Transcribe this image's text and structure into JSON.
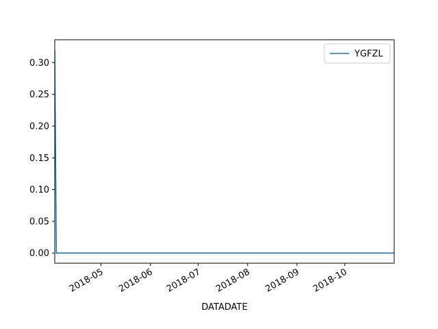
{
  "chart_data": {
    "type": "line",
    "title": "",
    "xlabel": "DATADATE",
    "ylabel": "",
    "x_type": "date",
    "xlim": [
      "2018-04-02",
      "2018-11-01"
    ],
    "ylim": [
      -0.016,
      0.336
    ],
    "x_ticks": [
      {
        "date": "2018-05-01",
        "label": "2018-05"
      },
      {
        "date": "2018-06-01",
        "label": "2018-06"
      },
      {
        "date": "2018-07-01",
        "label": "2018-07"
      },
      {
        "date": "2018-08-01",
        "label": "2018-08"
      },
      {
        "date": "2018-09-01",
        "label": "2018-09"
      },
      {
        "date": "2018-10-01",
        "label": "2018-10"
      }
    ],
    "y_ticks": [
      {
        "value": 0.0,
        "label": "0.00"
      },
      {
        "value": 0.05,
        "label": "0.05"
      },
      {
        "value": 0.1,
        "label": "0.10"
      },
      {
        "value": 0.15,
        "label": "0.15"
      },
      {
        "value": 0.2,
        "label": "0.20"
      },
      {
        "value": 0.25,
        "label": "0.25"
      },
      {
        "value": 0.3,
        "label": "0.30"
      }
    ],
    "grid": false,
    "legend": "top-right",
    "series": [
      {
        "name": "YGFZL",
        "color": "#1f77b4",
        "points": [
          {
            "x": "2018-04-02",
            "y": 0.32
          },
          {
            "x": "2018-04-03",
            "y": 0.0
          },
          {
            "x": "2018-11-01",
            "y": 0.0
          }
        ]
      }
    ]
  }
}
